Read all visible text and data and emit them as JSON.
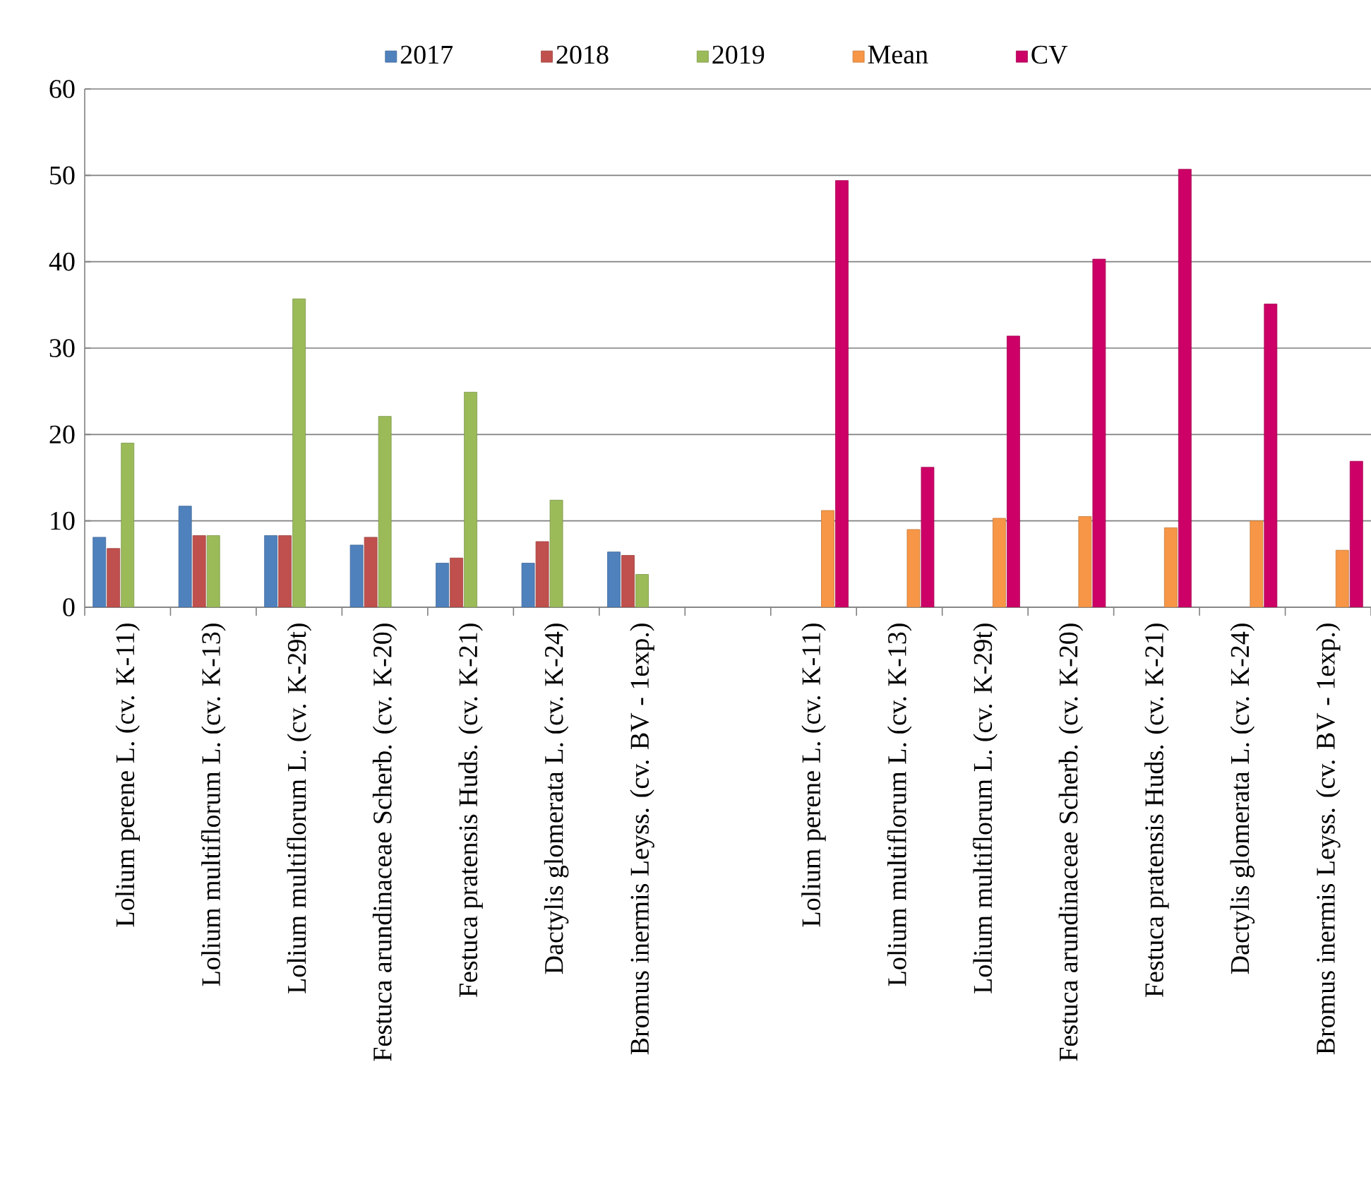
{
  "chart_data": {
    "type": "bar",
    "categories": [
      "Lolium perene L. (cv. K-11)",
      "Lolium multiflorum L. (cv. K-13)",
      "Lolium multiflorum L. (cv. K-29t)",
      "Festuca arundinaceae Scherb. (cv. K-20)",
      "Festuca pratensis Huds. (cv. K-21)",
      "Dactylis glomerata L. (cv. K-24)",
      "Bromus inermis Leyss. (cv. BV - 1exp.)",
      null,
      "Lolium perene L. (cv. K-11)",
      "Lolium multiflorum L. (cv. K-13)",
      "Lolium multiflorum L. (cv. K-29t)",
      "Festuca arundinaceae Scherb. (cv. K-20)",
      "Festuca pratensis Huds. (cv. K-21)",
      "Dactylis glomerata L. (cv. K-24)",
      "Bromus inermis Leyss. (cv. BV - 1exp.)"
    ],
    "series": [
      {
        "name": "2017",
        "color": "#4f81bd",
        "values": [
          8.1,
          11.7,
          8.3,
          7.2,
          5.1,
          5.1,
          6.4,
          null,
          null,
          null,
          null,
          null,
          null,
          null,
          null
        ]
      },
      {
        "name": "2018",
        "color": "#c0504d",
        "values": [
          6.8,
          8.3,
          8.3,
          8.1,
          5.7,
          7.6,
          6.0,
          null,
          null,
          null,
          null,
          null,
          null,
          null,
          null
        ]
      },
      {
        "name": "2019",
        "color": "#9bbb59",
        "values": [
          19.0,
          8.3,
          35.7,
          22.1,
          24.9,
          12.4,
          3.8,
          null,
          null,
          null,
          null,
          null,
          null,
          null,
          null
        ]
      },
      {
        "name": "Mean",
        "color": "#f79646",
        "values": [
          null,
          null,
          null,
          null,
          null,
          null,
          null,
          null,
          11.2,
          9.0,
          10.3,
          10.5,
          9.2,
          10.0,
          6.6
        ]
      },
      {
        "name": "CV",
        "color": "#cc0066",
        "values": [
          null,
          null,
          null,
          null,
          null,
          null,
          null,
          null,
          49.4,
          16.2,
          31.4,
          40.3,
          50.7,
          35.1,
          16.9
        ]
      }
    ],
    "ylim": [
      0,
      60
    ],
    "yticks": [
      0,
      10,
      20,
      30,
      40,
      50,
      60
    ],
    "grid": "y",
    "legend": "top"
  }
}
